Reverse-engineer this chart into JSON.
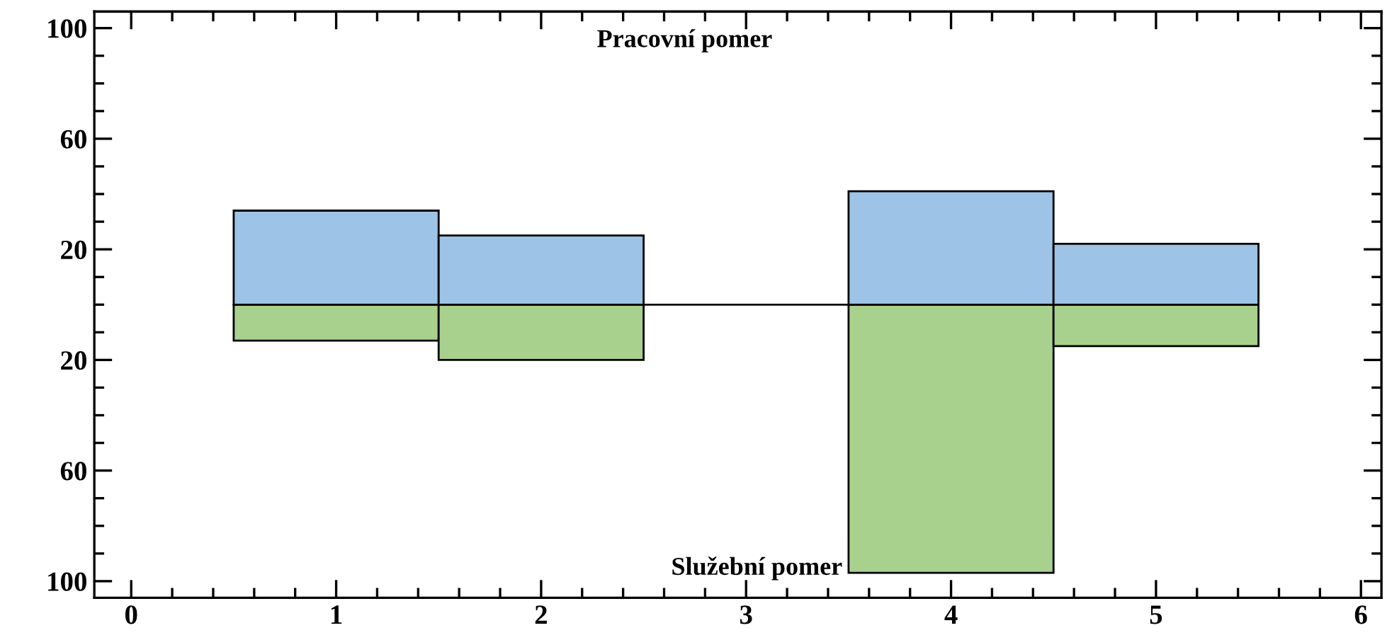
{
  "chart_data": {
    "type": "bar",
    "stacked": true,
    "x": [
      1,
      2,
      3,
      4,
      5
    ],
    "series": [
      {
        "name": "Pracovní pomer",
        "color": "#9dc3e6",
        "values": [
          34,
          25,
          0,
          41,
          22
        ]
      },
      {
        "name": "Služební pomer",
        "color": "#a9d18e",
        "values": [
          -13,
          -20,
          0,
          -97,
          -15
        ]
      }
    ],
    "xlim": [
      -0.18,
      6.1
    ],
    "xticks": [
      0,
      1,
      2,
      3,
      4,
      5,
      6
    ],
    "ylim": [
      -106,
      106
    ],
    "yticks": [
      100,
      60,
      20,
      {
        "value": -20,
        "label": "20"
      },
      {
        "value": -60,
        "label": "60"
      },
      {
        "value": -100,
        "label": "100"
      }
    ],
    "ref_lines": [
      {
        "axis": "y",
        "value": 0,
        "color": "#000000"
      }
    ],
    "grid": false
  }
}
